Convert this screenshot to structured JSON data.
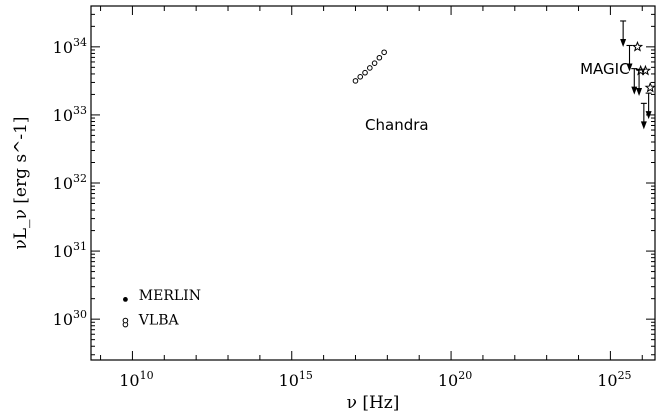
{
  "chart_data": {
    "type": "scatter",
    "xlabel": "ν [Hz]",
    "ylabel": "νL_ν [erg s^-1]",
    "x_scale": "log",
    "y_scale": "log",
    "xlim": [
      8.7,
      26.4
    ],
    "ylim": [
      29.4,
      34.6
    ],
    "x_ticks": [
      10,
      15,
      20,
      25
    ],
    "y_ticks": [
      30,
      31,
      32,
      33,
      34
    ],
    "tick_base": "10",
    "grid": false,
    "annotations": [
      {
        "text": "Chandra",
        "log_x": 17.3,
        "log_y": 32.78
      },
      {
        "text": "MAGIC",
        "log_x": 24.05,
        "log_y": 33.6
      },
      {
        "text": "MERLIN",
        "log_x": 10.2,
        "log_y": 30.28
      },
      {
        "text": "VLBA",
        "log_x": 10.2,
        "log_y": 29.92
      }
    ],
    "series": [
      {
        "name": "MERLIN",
        "marker": "filled-dot",
        "points": [
          [
            9.78,
            30.29
          ]
        ]
      },
      {
        "name": "VLBA",
        "marker": "open-circle",
        "points": [
          [
            9.78,
            29.92
          ],
          [
            9.78,
            29.98
          ]
        ]
      },
      {
        "name": "Chandra",
        "marker": "open-circle",
        "points": [
          [
            17.0,
            33.5
          ],
          [
            17.15,
            33.56
          ],
          [
            17.3,
            33.62
          ],
          [
            17.45,
            33.69
          ],
          [
            17.6,
            33.76
          ],
          [
            17.75,
            33.84
          ],
          [
            17.9,
            33.92
          ]
        ]
      },
      {
        "name": "MAGIC",
        "marker": "upper-limit",
        "points": [
          [
            25.4,
            34.38
          ],
          [
            25.6,
            34.02
          ],
          [
            25.75,
            33.68
          ],
          [
            25.9,
            33.66
          ],
          [
            26.05,
            33.17
          ],
          [
            26.2,
            33.32
          ]
        ]
      },
      {
        "name": "MAGIC",
        "marker": "star",
        "points": [
          [
            25.85,
            34.0
          ],
          [
            25.95,
            33.65
          ],
          [
            26.1,
            33.65
          ],
          [
            26.25,
            33.4
          ]
        ]
      }
    ]
  }
}
